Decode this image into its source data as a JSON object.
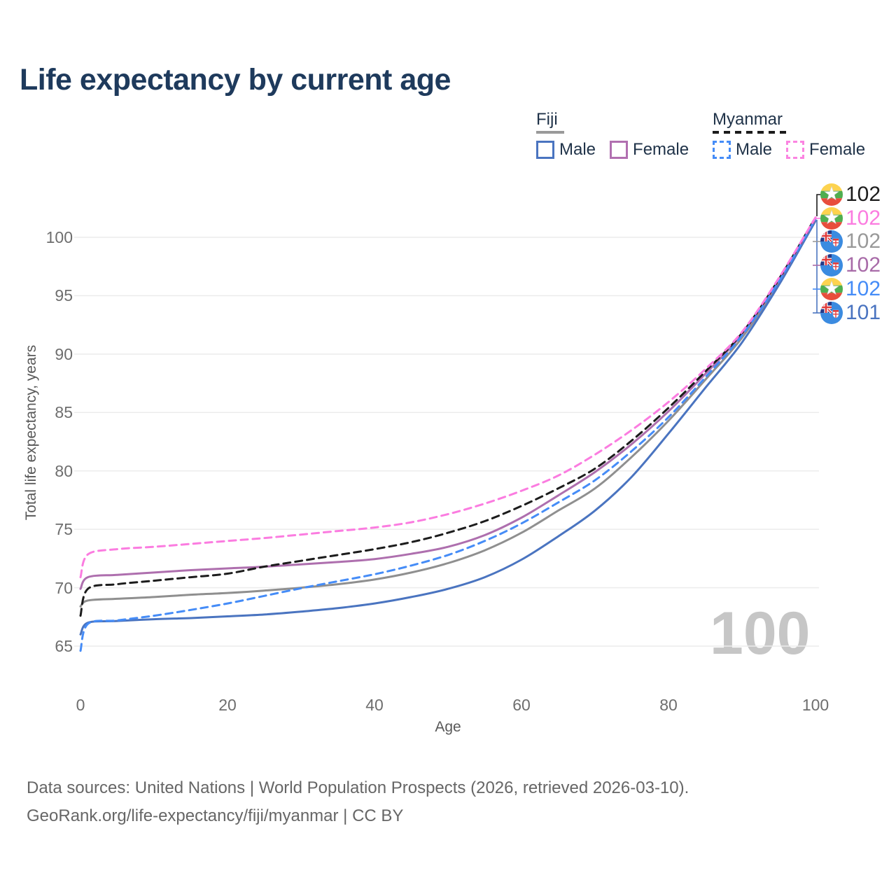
{
  "legend": {
    "groups": [
      {
        "name": "Fiji",
        "style": "solid",
        "line_color": "#9a9a9a",
        "items": [
          {
            "label": "Male",
            "color": "#4a74c0"
          },
          {
            "label": "Female",
            "color": "#b16fb0"
          }
        ]
      },
      {
        "name": "Myanmar",
        "style": "dashed",
        "line_color": "#1c1c1c",
        "items": [
          {
            "label": "Male",
            "color": "#458cf7"
          },
          {
            "label": "Female",
            "color": "#fb84e1"
          }
        ]
      }
    ]
  },
  "chart_data": {
    "type": "line",
    "title": "Life expectancy by current age",
    "xlabel": "Age",
    "ylabel": "Total life expectancy, years",
    "xlim": [
      0,
      100
    ],
    "ylim": [
      63,
      103
    ],
    "xticks": [
      0,
      20,
      40,
      60,
      80,
      100
    ],
    "yticks": [
      65,
      70,
      75,
      80,
      85,
      90,
      95,
      100
    ],
    "grid": "horizontal",
    "legend_position": "top-right",
    "watermark": "100",
    "x": [
      0,
      1,
      5,
      10,
      15,
      20,
      25,
      30,
      35,
      40,
      45,
      50,
      55,
      60,
      65,
      70,
      75,
      80,
      85,
      90,
      95,
      100
    ],
    "series": [
      {
        "id": "fiji-total",
        "name": "Fiji",
        "country": "Fiji",
        "sex": "Both",
        "color": "#8f8f8f",
        "dash": false,
        "values": [
          68.4,
          68.9,
          69.05,
          69.2,
          69.4,
          69.55,
          69.75,
          70.0,
          70.3,
          70.7,
          71.3,
          72.1,
          73.2,
          74.7,
          76.6,
          78.5,
          81.2,
          84.3,
          87.8,
          91.4,
          96.1,
          101.6
        ]
      },
      {
        "id": "fiji-male",
        "name": "Fiji Male",
        "country": "Fiji",
        "sex": "Male",
        "color": "#4a74c0",
        "dash": false,
        "values": [
          66.0,
          67.0,
          67.15,
          67.3,
          67.4,
          67.55,
          67.7,
          67.95,
          68.25,
          68.65,
          69.2,
          69.9,
          70.9,
          72.4,
          74.4,
          76.6,
          79.5,
          83.2,
          87.1,
          91.0,
          95.9,
          101.4
        ]
      },
      {
        "id": "fiji-female",
        "name": "Fiji Female",
        "country": "Fiji",
        "sex": "Female",
        "color": "#ae6fae",
        "dash": false,
        "values": [
          69.9,
          70.9,
          71.1,
          71.3,
          71.5,
          71.65,
          71.8,
          72.0,
          72.2,
          72.45,
          72.9,
          73.5,
          74.5,
          76.0,
          77.9,
          79.9,
          82.3,
          85.1,
          88.3,
          91.7,
          96.3,
          101.6
        ]
      },
      {
        "id": "myanmar-total",
        "name": "Myanmar",
        "country": "Myanmar",
        "sex": "Both",
        "color": "#1c1c1c",
        "dash": true,
        "values": [
          67.6,
          69.9,
          70.3,
          70.6,
          70.9,
          71.2,
          71.8,
          72.3,
          72.8,
          73.3,
          73.9,
          74.7,
          75.7,
          77.0,
          78.5,
          80.2,
          82.6,
          85.4,
          88.5,
          91.8,
          96.4,
          101.7
        ]
      },
      {
        "id": "myanmar-male",
        "name": "Myanmar Male",
        "country": "Myanmar",
        "sex": "Male",
        "color": "#458cf7",
        "dash": true,
        "values": [
          64.6,
          66.9,
          67.2,
          67.6,
          68.1,
          68.65,
          69.3,
          69.95,
          70.55,
          71.15,
          71.9,
          72.8,
          74.0,
          75.5,
          77.3,
          79.2,
          81.7,
          84.6,
          88.0,
          91.6,
          96.2,
          101.6
        ]
      },
      {
        "id": "myanmar-female",
        "name": "Myanmar Female",
        "country": "Myanmar",
        "sex": "Female",
        "color": "#fb7ce0",
        "dash": true,
        "values": [
          70.9,
          72.85,
          73.3,
          73.5,
          73.75,
          74.0,
          74.25,
          74.55,
          74.85,
          75.15,
          75.6,
          76.3,
          77.2,
          78.3,
          79.6,
          81.4,
          83.5,
          85.9,
          88.7,
          91.9,
          96.5,
          101.7
        ]
      }
    ]
  },
  "end_labels": [
    {
      "flag": "myanmar",
      "series": "Myanmar",
      "value": "102",
      "color": "#1c1c1c"
    },
    {
      "flag": "myanmar",
      "series": "Myanmar Female",
      "value": "102",
      "color": "#fb7ce0"
    },
    {
      "flag": "fiji",
      "series": "Fiji",
      "value": "102",
      "color": "#999999"
    },
    {
      "flag": "fiji",
      "series": "Fiji Female",
      "value": "102",
      "color": "#a86ba8"
    },
    {
      "flag": "myanmar",
      "series": "Myanmar Male",
      "value": "102",
      "color": "#458cf7"
    },
    {
      "flag": "fiji",
      "series": "Fiji Male",
      "value": "101",
      "color": "#4a74c0"
    }
  ],
  "footer": {
    "line1": "Data sources: United Nations | World Population Prospects (2026, retrieved 2026-03-10).",
    "line2": "GeoRank.org/life-expectancy/fiji/myanmar | CC BY"
  }
}
